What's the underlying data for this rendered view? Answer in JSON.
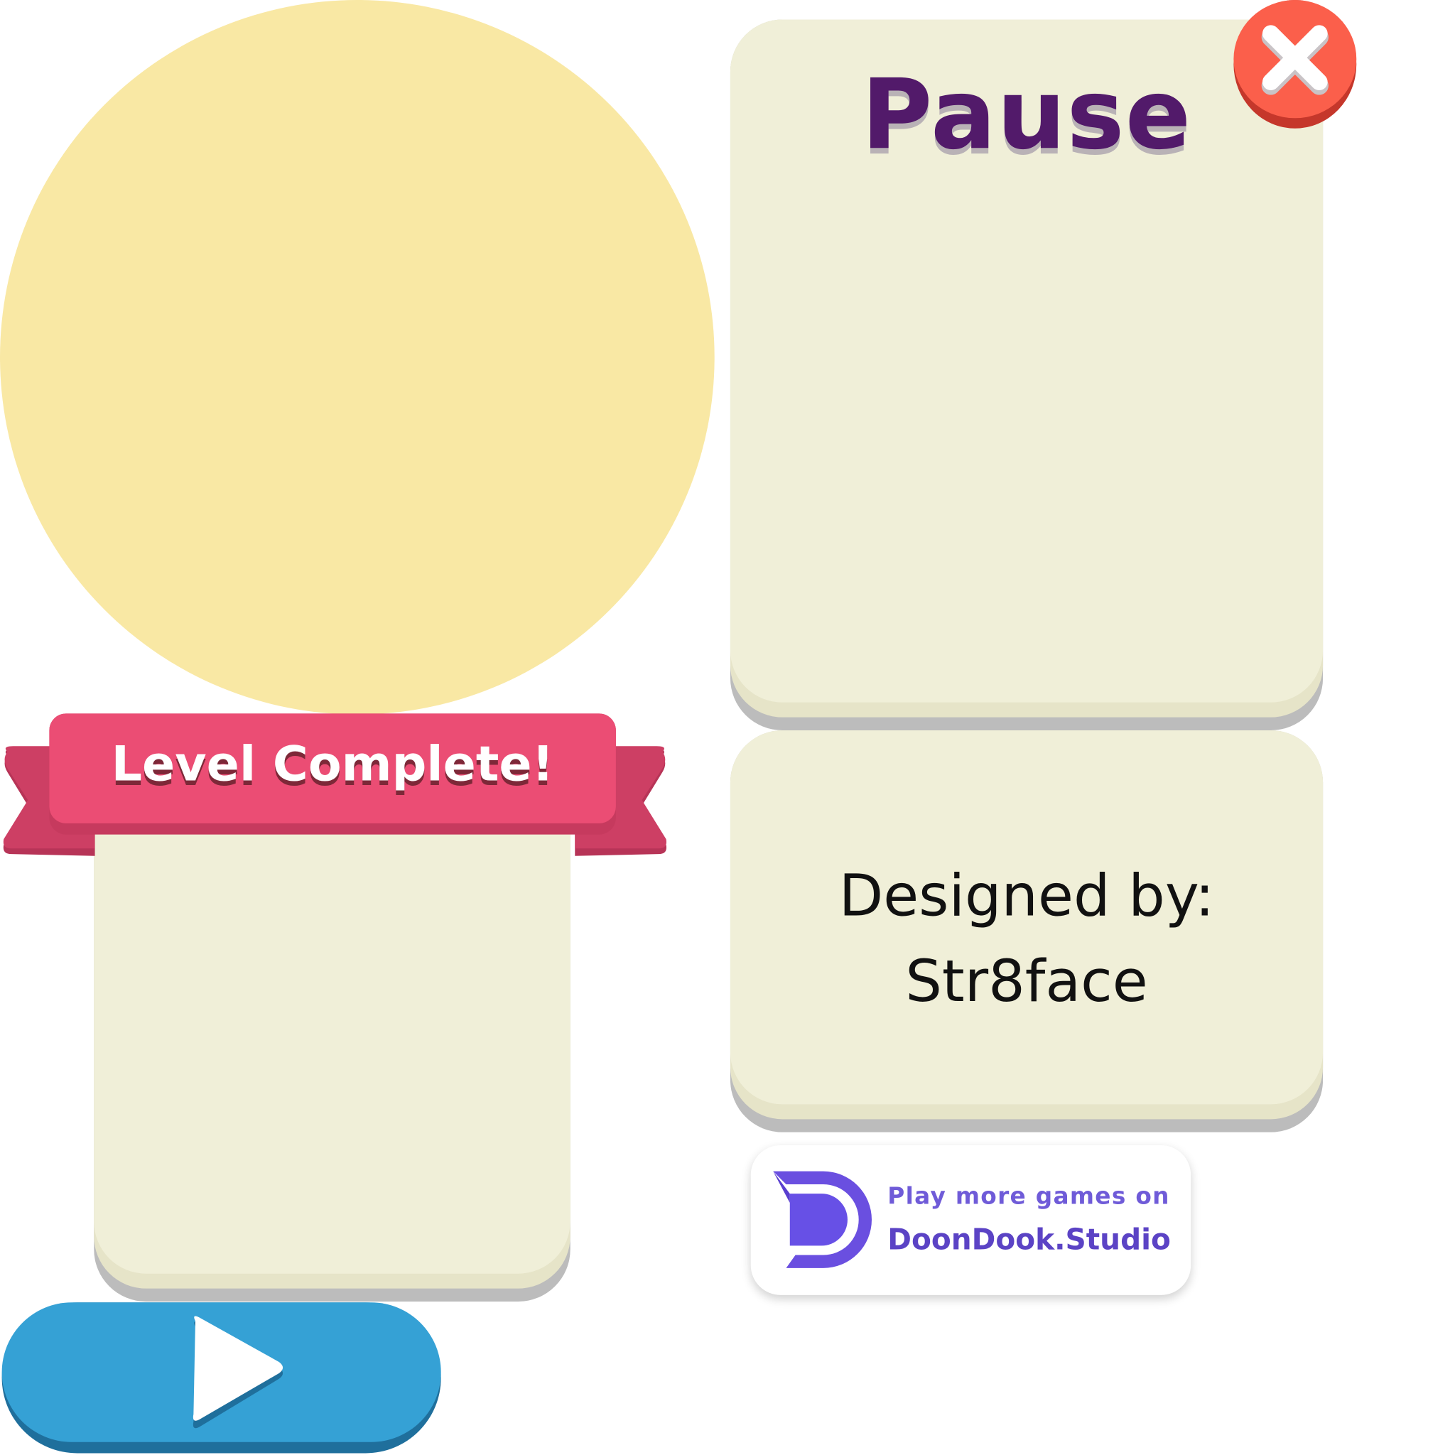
{
  "pause_panel": {
    "title": "Pause"
  },
  "close_button": {
    "icon": "close-icon"
  },
  "credits_panel": {
    "line1": "Designed by:",
    "line2": "Str8face"
  },
  "level_complete": {
    "banner": "Level Complete!"
  },
  "play_button": {
    "icon": "play-icon"
  },
  "promo": {
    "logo": "doondook-logo",
    "line1": "Play more games on",
    "line2": "DoonDook.Studio"
  },
  "colors": {
    "panel_cream": "#f0efd8",
    "title_purple": "#521a6a",
    "ribbon_pink": "#eb4d74",
    "close_red": "#fb5f4b",
    "play_blue": "#35a1d5",
    "glow_yellow": "#f9e8a4",
    "brand_purple": "#6f5bd8"
  }
}
